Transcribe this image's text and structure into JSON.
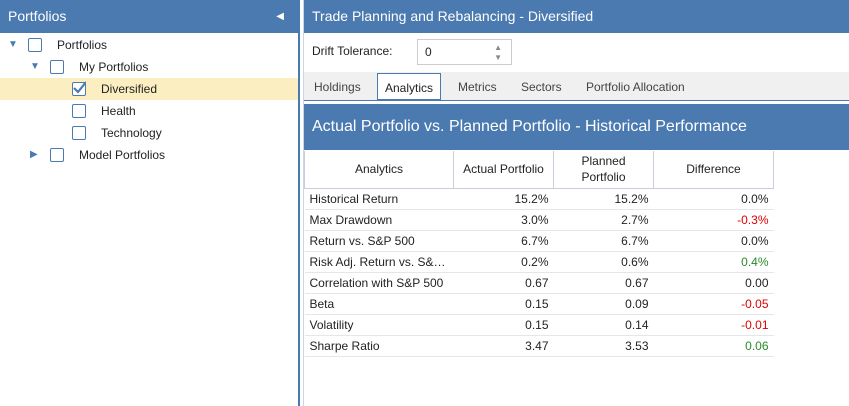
{
  "sidebar": {
    "title": "Portfolios",
    "tree": [
      {
        "label": "Portfolios",
        "level": 0,
        "expanded": true,
        "checked": false
      },
      {
        "label": "My Portfolios",
        "level": 1,
        "expanded": true,
        "checked": false
      },
      {
        "label": "Diversified",
        "level": 2,
        "checked": true,
        "selected": true
      },
      {
        "label": "Health",
        "level": 2,
        "checked": false
      },
      {
        "label": "Technology",
        "level": 2,
        "checked": false
      },
      {
        "label": "Model Portfolios",
        "level": 1,
        "expanded": false,
        "checked": false
      }
    ]
  },
  "main": {
    "title": "Trade Planning and Rebalancing - Diversified",
    "drift": {
      "label": "Drift Tolerance:",
      "value": "0"
    },
    "tabs": [
      "Holdings",
      "Analytics",
      "Metrics",
      "Sectors",
      "Portfolio Allocation"
    ],
    "panel_title": "Actual Portfolio vs. Planned Portfolio - Historical Performance",
    "table": {
      "columns": [
        "Analytics",
        "Actual Portfolio",
        "Planned Portfolio",
        "Difference"
      ],
      "rows": [
        [
          "Historical Return",
          "15.2%",
          "15.2%",
          "0.0%"
        ],
        [
          "Max Drawdown",
          "3.0%",
          "2.7%",
          "-0.3%"
        ],
        [
          "Return vs. S&P 500",
          "6.7%",
          "6.7%",
          "0.0%"
        ],
        [
          "Risk Adj. Return vs. S&…",
          "0.2%",
          "0.6%",
          "0.4%"
        ],
        [
          "Correlation with S&P 500",
          "0.67",
          "0.67",
          "0.00"
        ],
        [
          "Beta",
          "0.15",
          "0.09",
          "-0.05"
        ],
        [
          "Volatility",
          "0.15",
          "0.14",
          "-0.01"
        ],
        [
          "Sharpe Ratio",
          "3.47",
          "3.53",
          "0.06"
        ]
      ]
    }
  }
}
